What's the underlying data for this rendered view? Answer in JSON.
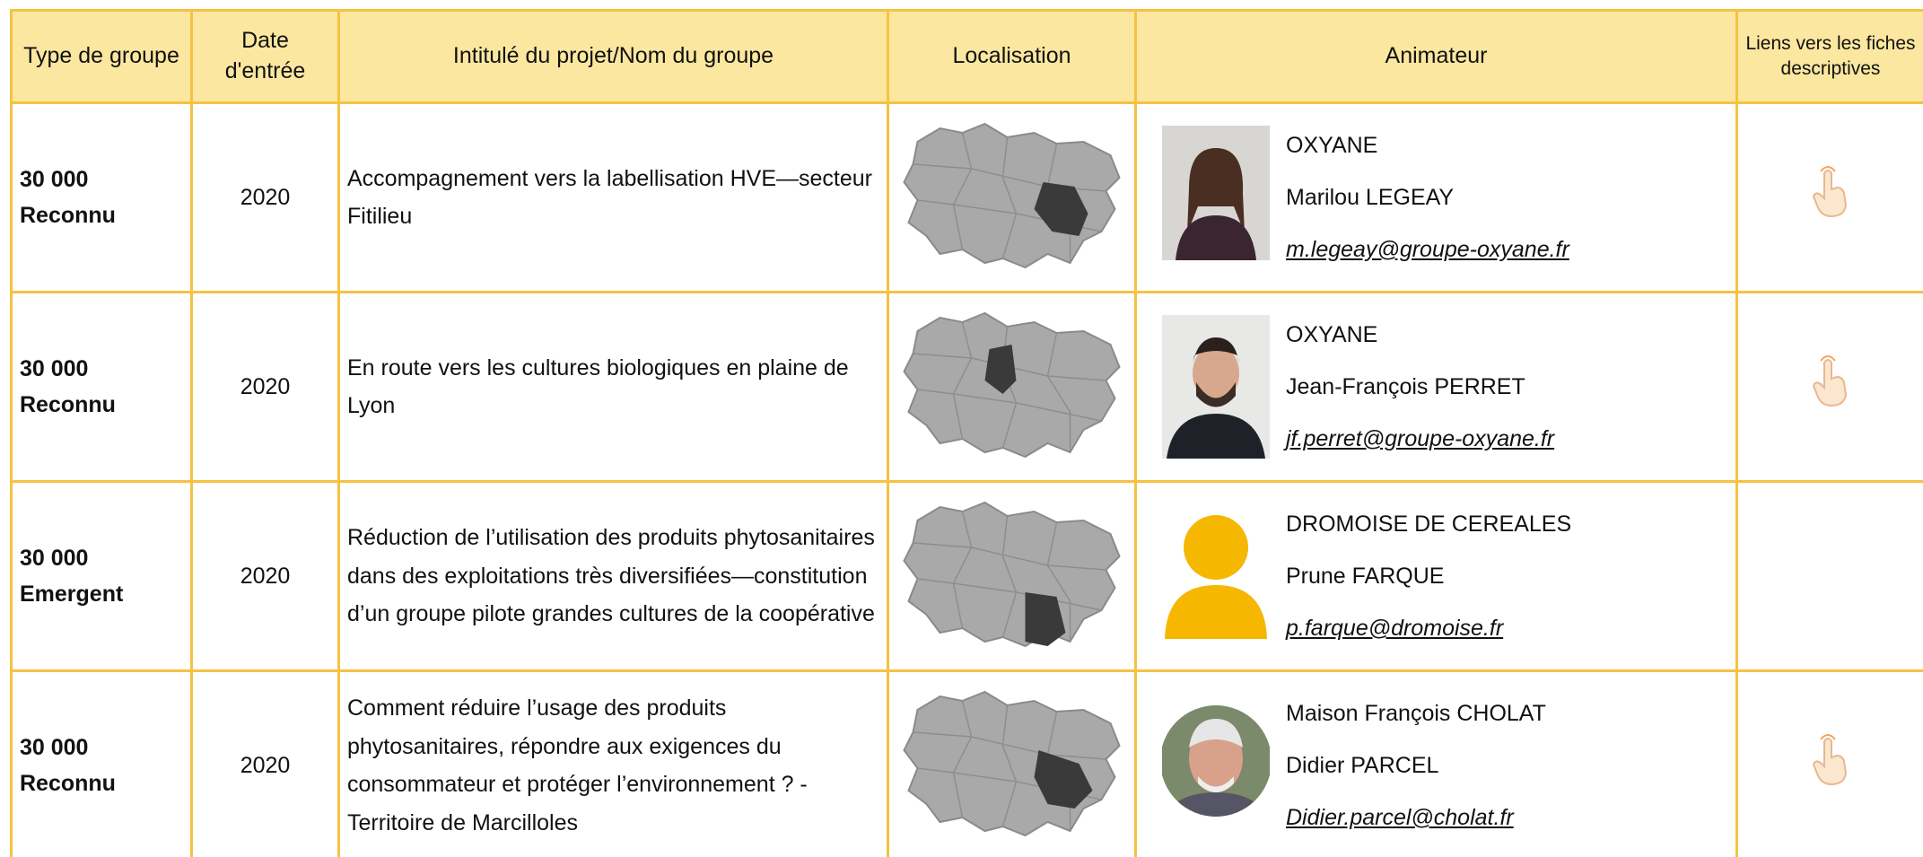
{
  "header": {
    "columns": [
      "Type de groupe",
      "Date d'entrée",
      "Intitulé du projet/Nom du groupe",
      "Localisation",
      "Animateur",
      "Liens vers les fiches descriptives"
    ]
  },
  "rows": [
    {
      "type": [
        "30 000",
        "Reconnu"
      ],
      "year": "2020",
      "title": "Accompagnement vers la labellisation HVE—secteur Fitilieu",
      "organisation": "OXYANE",
      "animator": "Marilou LEGEAY",
      "email": "m.legeay@groupe-oxyane.fr"
    },
    {
      "type": [
        "30 000",
        "Reconnu"
      ],
      "year": "2020",
      "title": "En route vers les cultures biologiques en plaine de Lyon",
      "organisation": "OXYANE",
      "animator": "Jean-François PERRET",
      "email": "jf.perret@groupe-oxyane.fr"
    },
    {
      "type": [
        "30 000",
        "Emergent"
      ],
      "year": "2020",
      "title": "Réduction de l’utilisation des produits phytosanitaires dans des exploitations très diversifiées—constitution d’un groupe pilote grandes cultures de la coopérative",
      "organisation": "DROMOISE DE CEREALES",
      "animator": "Prune FARQUE",
      "email": "p.farque@dromoise.fr"
    },
    {
      "type": [
        "30 000",
        "Reconnu"
      ],
      "year": "2020",
      "title": "Comment réduire l’usage des produits phytosanitaires, répondre aux exigences du consommateur et protéger l’environnement ? - Territoire de Marcilloles",
      "organisation": "Maison François CHOLAT",
      "animator": "Didier PARCEL",
      "email": "Didier.parcel@cholat.fr"
    }
  ]
}
